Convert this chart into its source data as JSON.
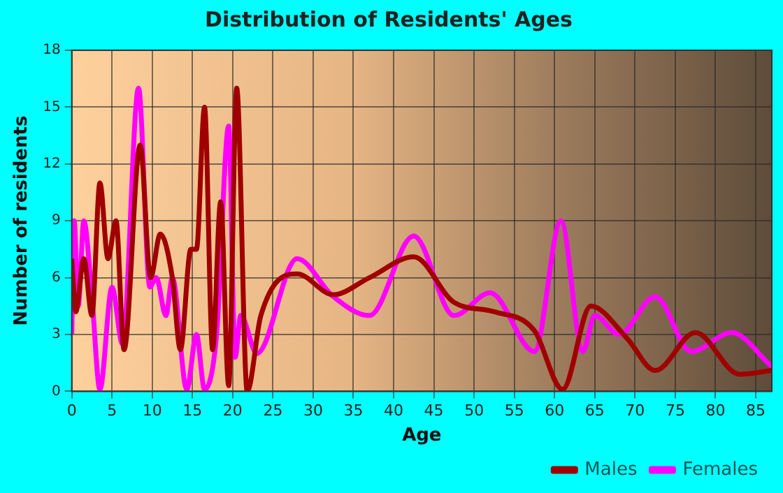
{
  "chart_data": {
    "type": "line",
    "title": "Distribution of Residents' Ages",
    "xlabel": "Age",
    "ylabel": "Number of residents",
    "xlim": [
      0,
      87
    ],
    "xticks": [
      0,
      5,
      10,
      15,
      20,
      25,
      30,
      35,
      40,
      45,
      50,
      55,
      60,
      65,
      70,
      75,
      80,
      85
    ],
    "ylim": [
      0,
      18
    ],
    "yticks": [
      0,
      3,
      6,
      9,
      12,
      15,
      18
    ],
    "grid": true,
    "legend": "bottom",
    "series": [
      {
        "name": "Males",
        "color": "#a00000",
        "x": [
          0,
          0.5,
          1.5,
          2.5,
          3.5,
          4.5,
          5.5,
          6.5,
          8.5,
          9.8,
          11,
          12.5,
          13.5,
          14.8,
          15.5,
          16.5,
          17.5,
          18.5,
          19.5,
          20.5,
          21.8,
          23.5,
          28,
          32.5,
          37,
          42.5,
          47.5,
          52.5,
          57.5,
          61,
          64.5,
          69,
          72.5,
          77.5,
          83,
          87
        ],
        "values": [
          7,
          4.2,
          7,
          4,
          11,
          7,
          9,
          2.2,
          13,
          6,
          8.3,
          6,
          2.2,
          7.5,
          7.5,
          15,
          2.2,
          10,
          0.3,
          16,
          0,
          4,
          6.2,
          5.1,
          6,
          7.1,
          4.7,
          4.2,
          3.2,
          0.1,
          4.5,
          2.8,
          1.1,
          3.1,
          0.9,
          1.1
        ]
      },
      {
        "name": "Females",
        "color": "#ff00ff",
        "x": [
          0,
          0.3,
          0.8,
          1.5,
          2.5,
          3.5,
          5,
          6.3,
          8.3,
          9.7,
          10.5,
          11.7,
          12.5,
          14.3,
          15.5,
          16.5,
          18,
          19.5,
          20.3,
          21,
          23,
          28,
          32.5,
          37,
          42.5,
          47.5,
          52,
          57.5,
          60.8,
          63.5,
          65,
          68,
          72.5,
          77,
          82,
          87
        ],
        "values": [
          3,
          9,
          4.5,
          9,
          5,
          0.1,
          5.5,
          2.5,
          16,
          5.5,
          6,
          4,
          6,
          0.1,
          3,
          0.1,
          3,
          14,
          1.8,
          4,
          2,
          7,
          5,
          4,
          8.2,
          4,
          5.2,
          2.1,
          9,
          2.1,
          4,
          3,
          5,
          2.1,
          3.1,
          1.3
        ]
      }
    ]
  }
}
